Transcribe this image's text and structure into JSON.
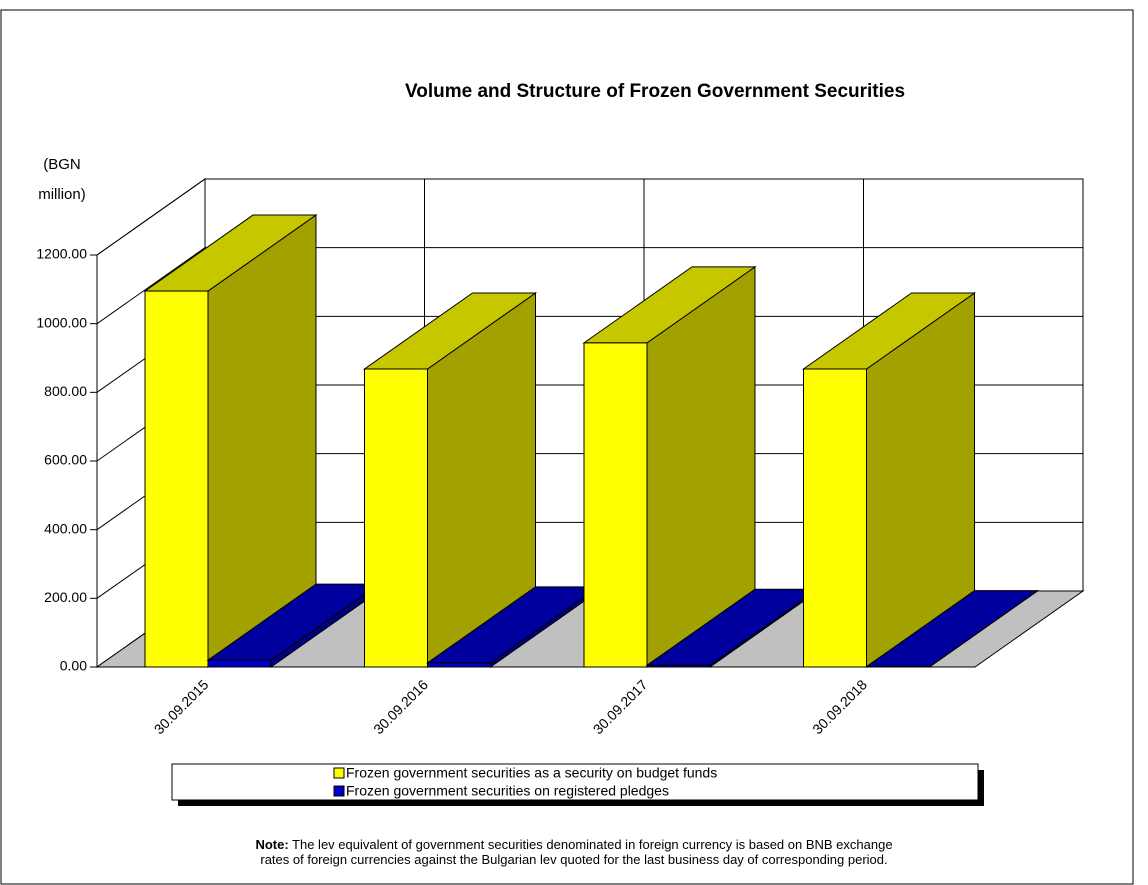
{
  "chart_data": {
    "type": "bar3d",
    "title": "Volume and Structure of Frozen Government Securities",
    "y_label": "(BGN million)",
    "categories": [
      "30.09.2015",
      "30.09.2016",
      "30.09.2017",
      "30.09.2018"
    ],
    "series": [
      {
        "name": "Frozen government securities as a security on budget funds",
        "color": "#ffff00",
        "values": [
          1095,
          868,
          944,
          868
        ]
      },
      {
        "name": "Frozen government securities on registered pledges",
        "color": "#0000cc",
        "values": [
          20,
          12,
          5,
          1
        ]
      }
    ],
    "ylim": [
      0,
      1200
    ],
    "yticks": [
      {
        "value": 0,
        "label": "0.00"
      },
      {
        "value": 200,
        "label": "200.00"
      },
      {
        "value": 400,
        "label": "400.00"
      },
      {
        "value": 600,
        "label": "600.00"
      },
      {
        "value": 800,
        "label": "800.00"
      },
      {
        "value": 1000,
        "label": "1000.00"
      },
      {
        "value": 1200,
        "label": "1200.00"
      }
    ],
    "grid": true,
    "note_label": "Note:",
    "note_line1": "The lev equivalent of government securities denominated in foreign currency is based on BNB exchange",
    "note_line2": "rates of foreign currencies against the Bulgarian lev quoted for the last business day of corresponding period."
  }
}
